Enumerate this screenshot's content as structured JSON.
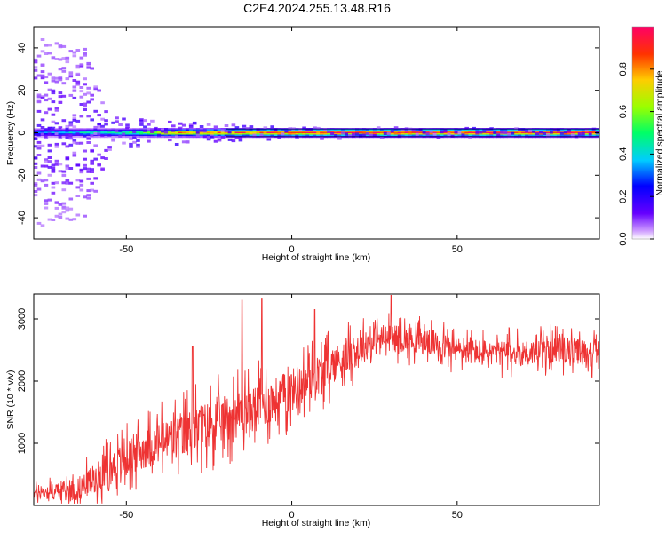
{
  "figure": {
    "title": "C2E4.2024.255.13.48.R16"
  },
  "chart_data": [
    {
      "type": "heatmap",
      "name": "spectrogram",
      "xlabel": "Height of straight line (km)",
      "ylabel": "Frequency (Hz)",
      "xlim": [
        -78,
        93
      ],
      "ylim": [
        -50,
        50
      ],
      "xticks": [
        -50,
        0,
        50
      ],
      "yticks": [
        -40,
        -20,
        0,
        20,
        40
      ],
      "colorbar": {
        "label": "Normalized spectral amplitude",
        "range": [
          0,
          1
        ],
        "ticks": [
          0.0,
          0.2,
          0.4,
          0.6,
          0.8
        ]
      },
      "ridge": {
        "frequency_hz": 0,
        "amplitude_profile": [
          {
            "x": -78,
            "amp": 0.3
          },
          {
            "x": -60,
            "amp": 0.45
          },
          {
            "x": -45,
            "amp": 0.55
          },
          {
            "x": -40,
            "amp": 0.75
          },
          {
            "x": -20,
            "amp": 0.85
          },
          {
            "x": 0,
            "amp": 0.9
          },
          {
            "x": 20,
            "amp": 0.95
          },
          {
            "x": 93,
            "amp": 0.95
          }
        ]
      },
      "spread_profile_hz": [
        {
          "x": -78,
          "spread": 45
        },
        {
          "x": -62,
          "spread": 40
        },
        {
          "x": -55,
          "spread": 8
        },
        {
          "x": -40,
          "spread": 6
        },
        {
          "x": -20,
          "spread": 4
        },
        {
          "x": 0,
          "spread": 3
        },
        {
          "x": 93,
          "spread": 2
        }
      ]
    },
    {
      "type": "line",
      "name": "snr",
      "xlabel": "Height of straight line (km)",
      "ylabel": "SNR (10 * v/v)",
      "xlim": [
        -78,
        93
      ],
      "ylim": [
        0,
        3400
      ],
      "xticks": [
        -50,
        0,
        50
      ],
      "yticks": [
        1000,
        2000,
        3000
      ],
      "color": "#ee3333",
      "trend": [
        {
          "x": -78,
          "y": 200
        },
        {
          "x": -65,
          "y": 250
        },
        {
          "x": -55,
          "y": 600
        },
        {
          "x": -45,
          "y": 900
        },
        {
          "x": -35,
          "y": 1100
        },
        {
          "x": -25,
          "y": 1300
        },
        {
          "x": -15,
          "y": 1500
        },
        {
          "x": -5,
          "y": 1700
        },
        {
          "x": 5,
          "y": 2000
        },
        {
          "x": 15,
          "y": 2350
        },
        {
          "x": 25,
          "y": 2650
        },
        {
          "x": 30,
          "y": 2700
        },
        {
          "x": 40,
          "y": 2650
        },
        {
          "x": 50,
          "y": 2500
        },
        {
          "x": 60,
          "y": 2450
        },
        {
          "x": 70,
          "y": 2450
        },
        {
          "x": 80,
          "y": 2500
        },
        {
          "x": 93,
          "y": 2450
        }
      ],
      "noise_amplitude": [
        {
          "x": -78,
          "a": 150
        },
        {
          "x": -55,
          "a": 450
        },
        {
          "x": -30,
          "a": 650
        },
        {
          "x": 0,
          "a": 600
        },
        {
          "x": 30,
          "a": 350
        },
        {
          "x": 93,
          "a": 350
        }
      ],
      "spikes": [
        {
          "x": -30,
          "y": 2550
        },
        {
          "x": -15,
          "y": 3300
        },
        {
          "x": -9,
          "y": 3320
        },
        {
          "x": 7,
          "y": 3150
        },
        {
          "x": 30,
          "y": 3380
        }
      ]
    }
  ]
}
